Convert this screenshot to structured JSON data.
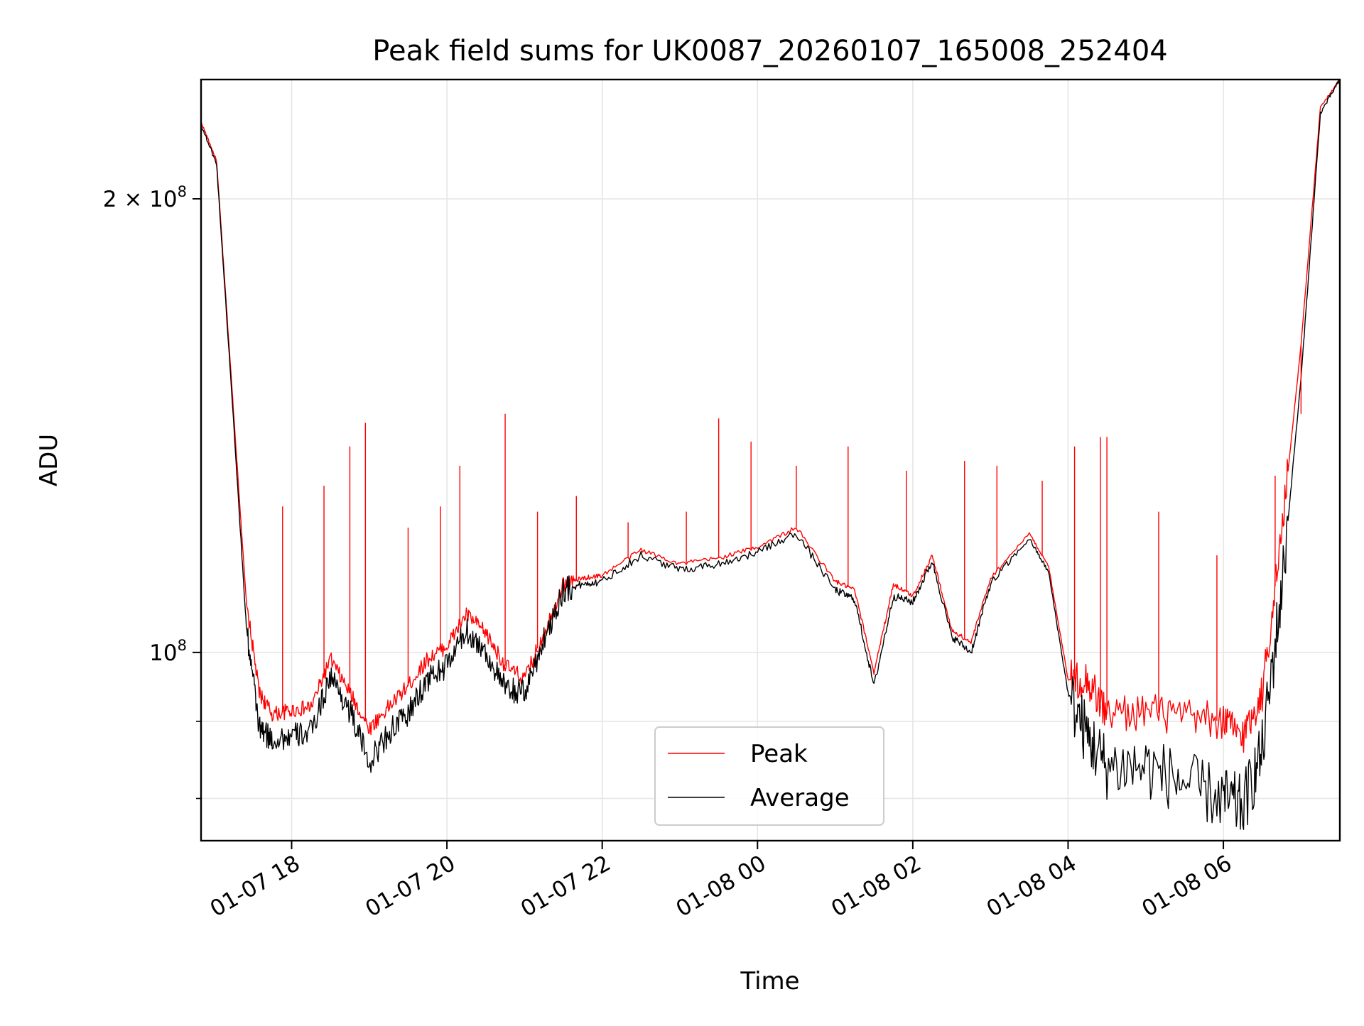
{
  "chart_data": {
    "type": "line",
    "title": "Peak field sums for UK0087_20260107_165008_252404",
    "xlabel": "Time",
    "ylabel": "ADU",
    "y_scale": "log",
    "xlim": [
      "2026-01-07 16:50",
      "2026-01-08 07:30"
    ],
    "ylim": [
      75000000,
      240000000
    ],
    "grid": true,
    "legend_position": "lower-center",
    "x_ticks": [
      {
        "t": "2026-01-07 18:00",
        "label": "01-07 18"
      },
      {
        "t": "2026-01-07 20:00",
        "label": "01-07 20"
      },
      {
        "t": "2026-01-07 22:00",
        "label": "01-07 22"
      },
      {
        "t": "2026-01-08 00:00",
        "label": "01-08 00"
      },
      {
        "t": "2026-01-08 02:00",
        "label": "01-08 02"
      },
      {
        "t": "2026-01-08 04:00",
        "label": "01-08 04"
      },
      {
        "t": "2026-01-08 06:00",
        "label": "01-08 06"
      }
    ],
    "y_major_ticks": [
      {
        "value": 100000000,
        "base": "10",
        "exp": "8",
        "coef": ""
      },
      {
        "value": 200000000,
        "base": "10",
        "exp": "8",
        "coef": "2 × "
      }
    ],
    "y_minor_ticks": [
      80000000,
      90000000
    ],
    "series": [
      {
        "name": "Peak",
        "color": "#ff0000",
        "x": [
          "2026-01-07 16:50",
          "2026-01-07 17:02",
          "2026-01-07 17:15",
          "2026-01-07 17:25",
          "2026-01-07 17:35",
          "2026-01-07 17:45",
          "2026-01-07 18:00",
          "2026-01-07 18:15",
          "2026-01-07 18:30",
          "2026-01-07 18:45",
          "2026-01-07 19:00",
          "2026-01-07 19:15",
          "2026-01-07 19:30",
          "2026-01-07 19:45",
          "2026-01-07 20:00",
          "2026-01-07 20:15",
          "2026-01-07 20:30",
          "2026-01-07 20:45",
          "2026-01-07 21:00",
          "2026-01-07 21:15",
          "2026-01-07 21:30",
          "2026-01-07 21:45",
          "2026-01-07 22:00",
          "2026-01-07 22:30",
          "2026-01-07 23:00",
          "2026-01-07 23:30",
          "2026-01-08 00:00",
          "2026-01-08 00:30",
          "2026-01-08 01:00",
          "2026-01-08 01:15",
          "2026-01-08 01:30",
          "2026-01-08 01:45",
          "2026-01-08 02:00",
          "2026-01-08 02:15",
          "2026-01-08 02:30",
          "2026-01-08 02:45",
          "2026-01-08 03:00",
          "2026-01-08 03:30",
          "2026-01-08 03:45",
          "2026-01-08 04:00",
          "2026-01-08 04:15",
          "2026-01-08 04:30",
          "2026-01-08 05:00",
          "2026-01-08 05:30",
          "2026-01-08 06:00",
          "2026-01-08 06:15",
          "2026-01-08 06:30",
          "2026-01-08 06:45",
          "2026-01-08 07:00",
          "2026-01-08 07:15",
          "2026-01-08 07:30"
        ],
        "values": [
          225000000,
          212000000,
          145000000,
          108000000,
          94000000,
          91000000,
          91500000,
          92000000,
          99000000,
          94000000,
          89000000,
          92000000,
          95000000,
          99000000,
          101000000,
          106000000,
          103000000,
          98000000,
          96000000,
          103000000,
          111000000,
          112000000,
          112500000,
          117000000,
          114500000,
          115500000,
          117500000,
          121000000,
          111500000,
          110000000,
          97000000,
          111000000,
          109000000,
          116000000,
          103500000,
          101500000,
          112000000,
          120000000,
          114000000,
          96000000,
          96000000,
          91000000,
          91500000,
          90500000,
          90000000,
          88000000,
          94000000,
          120000000,
          160000000,
          230000000,
          240000000
        ]
      },
      {
        "name": "Average",
        "color": "#000000",
        "x": [
          "2026-01-07 16:50",
          "2026-01-07 17:02",
          "2026-01-07 17:15",
          "2026-01-07 17:25",
          "2026-01-07 17:35",
          "2026-01-07 17:45",
          "2026-01-07 18:00",
          "2026-01-07 18:15",
          "2026-01-07 18:30",
          "2026-01-07 18:45",
          "2026-01-07 19:00",
          "2026-01-07 19:15",
          "2026-01-07 19:30",
          "2026-01-07 19:45",
          "2026-01-07 20:00",
          "2026-01-07 20:15",
          "2026-01-07 20:30",
          "2026-01-07 20:45",
          "2026-01-07 21:00",
          "2026-01-07 21:15",
          "2026-01-07 21:30",
          "2026-01-07 21:45",
          "2026-01-07 22:00",
          "2026-01-07 22:30",
          "2026-01-07 23:00",
          "2026-01-07 23:30",
          "2026-01-08 00:00",
          "2026-01-08 00:30",
          "2026-01-08 01:00",
          "2026-01-08 01:15",
          "2026-01-08 01:30",
          "2026-01-08 01:45",
          "2026-01-08 02:00",
          "2026-01-08 02:15",
          "2026-01-08 02:30",
          "2026-01-08 02:45",
          "2026-01-08 03:00",
          "2026-01-08 03:30",
          "2026-01-08 03:45",
          "2026-01-08 04:00",
          "2026-01-08 04:15",
          "2026-01-08 04:30",
          "2026-01-08 05:00",
          "2026-01-08 05:30",
          "2026-01-08 06:00",
          "2026-01-08 06:15",
          "2026-01-08 06:30",
          "2026-01-08 06:45",
          "2026-01-08 07:00",
          "2026-01-08 07:15",
          "2026-01-08 07:30"
        ],
        "values": [
          224000000,
          211000000,
          143000000,
          104000000,
          89000000,
          87500000,
          88000000,
          88500000,
          96500000,
          91500000,
          84500000,
          88500000,
          91000000,
          96000000,
          98000000,
          103500000,
          100000000,
          94500000,
          94000000,
          102000000,
          110000000,
          111000000,
          111500000,
          116000000,
          113500000,
          114500000,
          116500000,
          120000000,
          110000000,
          108500000,
          95000000,
          109000000,
          108000000,
          115000000,
          102500000,
          100000000,
          111000000,
          119000000,
          113000000,
          94000000,
          88000000,
          84000000,
          84000000,
          82000000,
          80000000,
          79000000,
          86000000,
          110000000,
          152000000,
          228000000,
          240000000
        ]
      }
    ],
    "peak_spikes": [
      {
        "t": "2026-01-07 17:53",
        "v": 125000000
      },
      {
        "t": "2026-01-07 18:25",
        "v": 129000000
      },
      {
        "t": "2026-01-07 18:45",
        "v": 137000000
      },
      {
        "t": "2026-01-07 18:57",
        "v": 142000000
      },
      {
        "t": "2026-01-07 19:30",
        "v": 121000000
      },
      {
        "t": "2026-01-07 19:55",
        "v": 125000000
      },
      {
        "t": "2026-01-07 20:10",
        "v": 133000000
      },
      {
        "t": "2026-01-07 20:45",
        "v": 144000000
      },
      {
        "t": "2026-01-07 21:10",
        "v": 124000000
      },
      {
        "t": "2026-01-07 21:40",
        "v": 127000000
      },
      {
        "t": "2026-01-07 22:20",
        "v": 122000000
      },
      {
        "t": "2026-01-07 23:05",
        "v": 124000000
      },
      {
        "t": "2026-01-07 23:30",
        "v": 143000000
      },
      {
        "t": "2026-01-07 23:55",
        "v": 138000000
      },
      {
        "t": "2026-01-08 00:30",
        "v": 133000000
      },
      {
        "t": "2026-01-08 01:10",
        "v": 137000000
      },
      {
        "t": "2026-01-08 01:55",
        "v": 132000000
      },
      {
        "t": "2026-01-08 02:40",
        "v": 134000000
      },
      {
        "t": "2026-01-08 03:05",
        "v": 133000000
      },
      {
        "t": "2026-01-08 03:40",
        "v": 130000000
      },
      {
        "t": "2026-01-08 04:05",
        "v": 137000000
      },
      {
        "t": "2026-01-08 04:25",
        "v": 139000000
      },
      {
        "t": "2026-01-08 04:30",
        "v": 139000000
      },
      {
        "t": "2026-01-08 05:10",
        "v": 124000000
      },
      {
        "t": "2026-01-08 05:55",
        "v": 116000000
      },
      {
        "t": "2026-01-08 06:40",
        "v": 131000000
      },
      {
        "t": "2026-01-08 07:00",
        "v": 144000000
      }
    ]
  }
}
